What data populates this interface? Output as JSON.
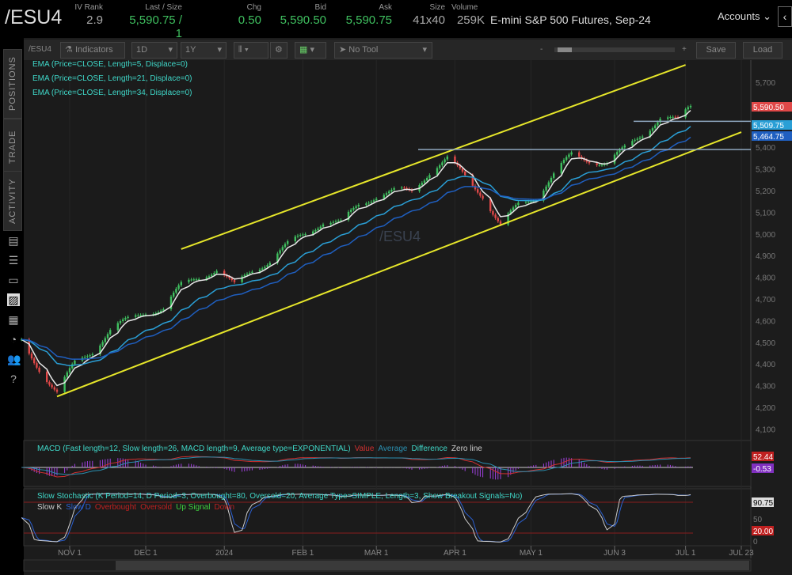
{
  "header": {
    "symbol": "/ESU4",
    "fields": [
      {
        "label": "IV Rank",
        "value": "2.9",
        "color": "w"
      },
      {
        "label": "Last / Size",
        "value": "5,590.75 / 1",
        "color": "g"
      },
      {
        "label": "Chg",
        "value": "0.50",
        "color": "g"
      },
      {
        "label": "Bid",
        "value": "5,590.50",
        "color": "g"
      },
      {
        "label": "Ask",
        "value": "5,590.75",
        "color": "g"
      },
      {
        "label": "Size",
        "value": "41x40",
        "color": "w"
      },
      {
        "label": "Volume",
        "value": "259K",
        "color": "w"
      }
    ],
    "description": "E-mini S&P 500 Futures, Sep-24",
    "accounts": "Accounts"
  },
  "side_tabs": [
    "POSITIONS",
    "TRADE",
    "ACTIVITY"
  ],
  "side_icons": [
    "clipboard-icon",
    "list-icon",
    "tv-icon",
    "chart-icon",
    "grid-icon",
    "gauge-icon",
    "people-icon",
    "help-icon"
  ],
  "toolbar": {
    "symbol": "/ESU4",
    "indicators": "Indicators",
    "aggregation": "1D",
    "period": "1Y",
    "tool": "No Tool",
    "save": "Save",
    "load": "Load",
    "zoom_minus": "-",
    "zoom_plus": "+"
  },
  "studies": [
    "EMA (Price=CLOSE, Length=5, Displace=0)",
    "EMA (Price=CLOSE, Length=21, Displace=0)",
    "EMA (Price=CLOSE, Length=34, Displace=0)"
  ],
  "watermark": "/ESU4",
  "macd": {
    "label": "MACD (Fast length=12, Slow length=26, MACD length=9, Average type=EXPONENTIAL)",
    "legend": [
      "Value",
      "Average",
      "Difference",
      "Zero line"
    ],
    "value": "52.44",
    "diff": "-0.53"
  },
  "stoch": {
    "label": "Slow Stochastic (K Period=14, D Period=3, Overbought=80, Oversold=20, Average Type=SIMPLE, Length=3, Show Breakout Signals=No)",
    "legend": [
      "Slow K",
      "Slow D",
      "Overbought",
      "Oversold",
      "Up Signal",
      "Down"
    ],
    "value": "90.75",
    "oversold_label": "20.00",
    "ticks": [
      "50",
      "0"
    ]
  },
  "colors": {
    "up": "#3fbf5f",
    "down": "#e04848",
    "ema5": "#e8e8e8",
    "ema21": "#2a9fd6",
    "ema34": "#1f5fc0",
    "channel": "#e6e62a",
    "hline": "#8fa8c0"
  },
  "chart_data": {
    "type": "candlestick",
    "ylim": [
      4100,
      5760
    ],
    "yticks": [
      "5,700",
      "5,600",
      "5,500",
      "5,400",
      "5,300",
      "5,200",
      "5,100",
      "5,000",
      "4,900",
      "4,800",
      "4,700",
      "4,600",
      "4,500",
      "4,400",
      "4,300",
      "4,200",
      "4,100"
    ],
    "xticks": [
      "NOV 1",
      "DEC 1",
      "2024",
      "FEB 1",
      "MAR 1",
      "APR 1",
      "MAY 1",
      "JUN 3",
      "JUL 1",
      "JUL 23"
    ],
    "weekly_closes": [
      {
        "date": "2023-10-13",
        "close": 4500
      },
      {
        "date": "2023-10-20",
        "close": 4380
      },
      {
        "date": "2023-10-27",
        "close": 4270
      },
      {
        "date": "2023-11-03",
        "close": 4400
      },
      {
        "date": "2023-11-10",
        "close": 4460
      },
      {
        "date": "2023-11-17",
        "close": 4560
      },
      {
        "date": "2023-11-24",
        "close": 4600
      },
      {
        "date": "2023-12-01",
        "close": 4640
      },
      {
        "date": "2023-12-08",
        "close": 4660
      },
      {
        "date": "2023-12-15",
        "close": 4760
      },
      {
        "date": "2023-12-22",
        "close": 4800
      },
      {
        "date": "2023-12-29",
        "close": 4840
      },
      {
        "date": "2024-01-05",
        "close": 4760
      },
      {
        "date": "2024-01-12",
        "close": 4830
      },
      {
        "date": "2024-01-19",
        "close": 4880
      },
      {
        "date": "2024-01-26",
        "close": 4950
      },
      {
        "date": "2024-02-02",
        "close": 5000
      },
      {
        "date": "2024-02-09",
        "close": 5060
      },
      {
        "date": "2024-02-16",
        "close": 5050
      },
      {
        "date": "2024-02-23",
        "close": 5130
      },
      {
        "date": "2024-03-01",
        "close": 5180
      },
      {
        "date": "2024-03-08",
        "close": 5200
      },
      {
        "date": "2024-03-15",
        "close": 5190
      },
      {
        "date": "2024-03-22",
        "close": 5290
      },
      {
        "date": "2024-03-29",
        "close": 5350
      },
      {
        "date": "2024-04-05",
        "close": 5260
      },
      {
        "date": "2024-04-12",
        "close": 5180
      },
      {
        "date": "2024-04-19",
        "close": 5040
      },
      {
        "date": "2024-04-26",
        "close": 5130
      },
      {
        "date": "2024-05-03",
        "close": 5170
      },
      {
        "date": "2024-05-10",
        "close": 5280
      },
      {
        "date": "2024-05-17",
        "close": 5360
      },
      {
        "date": "2024-05-24",
        "close": 5340
      },
      {
        "date": "2024-05-31",
        "close": 5330
      },
      {
        "date": "2024-06-07",
        "close": 5390
      },
      {
        "date": "2024-06-14",
        "close": 5460
      },
      {
        "date": "2024-06-21",
        "close": 5540
      },
      {
        "date": "2024-06-28",
        "close": 5520
      },
      {
        "date": "2024-07-03",
        "close": 5590.75
      }
    ],
    "price_labels": [
      {
        "value": "5,590.50",
        "kind": "last"
      },
      {
        "value": "5,509.75",
        "kind": "ema21"
      },
      {
        "value": "5,464.75",
        "kind": "ema34"
      }
    ],
    "channel_upper": [
      {
        "date": "2023-12-15",
        "price": 4930
      },
      {
        "date": "2024-07-01",
        "price": 5780
      }
    ],
    "channel_lower": [
      {
        "date": "2023-10-27",
        "price": 4250
      },
      {
        "date": "2024-07-23",
        "price": 5470
      }
    ],
    "horizontal_lines": [
      5520,
      5390
    ],
    "stoch_levels": [
      80,
      20
    ]
  }
}
